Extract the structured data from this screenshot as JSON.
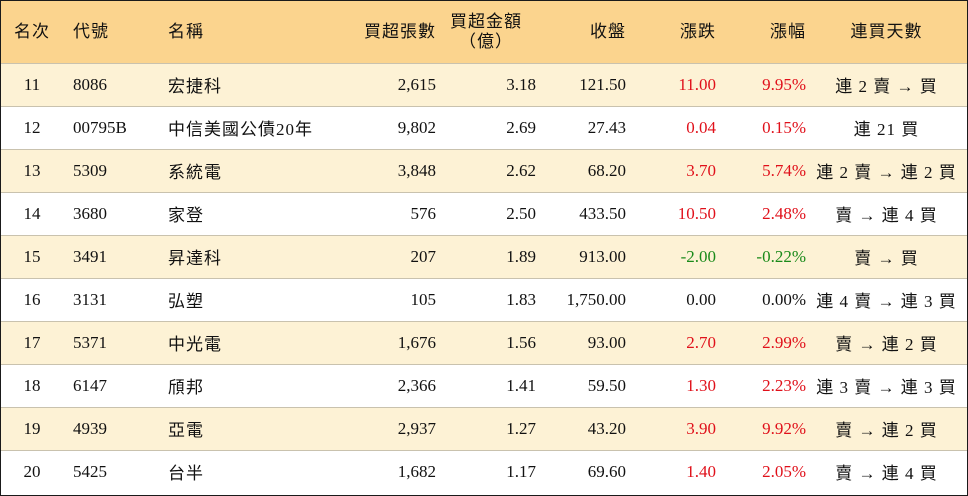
{
  "colors": {
    "header_bg": "#fbd48e",
    "odd_row_bg": "#fdf2d5",
    "up": "#e0101a",
    "down": "#1a8a1a"
  },
  "headers": {
    "rank": "名次",
    "code": "代號",
    "name": "名稱",
    "net_buy_volume": "買超張數",
    "net_buy_amount_line1": "買超金額",
    "net_buy_amount_line2": "（億）",
    "close": "收盤",
    "change": "漲跌",
    "change_pct": "漲幅",
    "buy_days": "連買天數"
  },
  "rows": [
    {
      "rank": "11",
      "code": "8086",
      "name": "宏捷科",
      "volume": "2,615",
      "amount": "3.18",
      "close": "121.50",
      "change": "11.00",
      "pct": "9.95%",
      "trend": "up",
      "days": "連 2 賣 → 買"
    },
    {
      "rank": "12",
      "code": "00795B",
      "name": "中信美國公債20年",
      "volume": "9,802",
      "amount": "2.69",
      "close": "27.43",
      "change": "0.04",
      "pct": "0.15%",
      "trend": "up",
      "days": "連 21 買"
    },
    {
      "rank": "13",
      "code": "5309",
      "name": "系統電",
      "volume": "3,848",
      "amount": "2.62",
      "close": "68.20",
      "change": "3.70",
      "pct": "5.74%",
      "trend": "up",
      "days": "連 2 賣 → 連 2 買"
    },
    {
      "rank": "14",
      "code": "3680",
      "name": "家登",
      "volume": "576",
      "amount": "2.50",
      "close": "433.50",
      "change": "10.50",
      "pct": "2.48%",
      "trend": "up",
      "days": "賣 → 連 4 買"
    },
    {
      "rank": "15",
      "code": "3491",
      "name": "昇達科",
      "volume": "207",
      "amount": "1.89",
      "close": "913.00",
      "change": "-2.00",
      "pct": "-0.22%",
      "trend": "down",
      "days": "賣 → 買"
    },
    {
      "rank": "16",
      "code": "3131",
      "name": "弘塑",
      "volume": "105",
      "amount": "1.83",
      "close": "1,750.00",
      "change": "0.00",
      "pct": "0.00%",
      "trend": "flat",
      "days": "連 4 賣 → 連 3 買"
    },
    {
      "rank": "17",
      "code": "5371",
      "name": "中光電",
      "volume": "1,676",
      "amount": "1.56",
      "close": "93.00",
      "change": "2.70",
      "pct": "2.99%",
      "trend": "up",
      "days": "賣 → 連 2 買"
    },
    {
      "rank": "18",
      "code": "6147",
      "name": "頎邦",
      "volume": "2,366",
      "amount": "1.41",
      "close": "59.50",
      "change": "1.30",
      "pct": "2.23%",
      "trend": "up",
      "days": "連 3 賣 → 連 3 買"
    },
    {
      "rank": "19",
      "code": "4939",
      "name": "亞電",
      "volume": "2,937",
      "amount": "1.27",
      "close": "43.20",
      "change": "3.90",
      "pct": "9.92%",
      "trend": "up",
      "days": "賣 → 連 2 買"
    },
    {
      "rank": "20",
      "code": "5425",
      "name": "台半",
      "volume": "1,682",
      "amount": "1.17",
      "close": "69.60",
      "change": "1.40",
      "pct": "2.05%",
      "trend": "up",
      "days": "賣 → 連 4 買"
    }
  ]
}
